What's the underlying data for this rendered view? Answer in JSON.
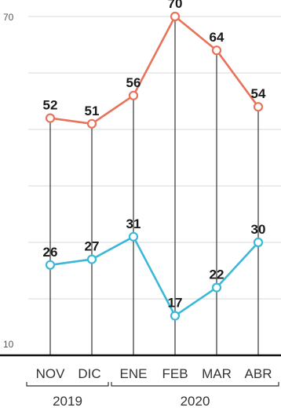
{
  "chart_data": {
    "type": "line",
    "categories": [
      "NOV",
      "DIC",
      "ENE",
      "FEB",
      "MAR",
      "ABR"
    ],
    "year_groups": [
      {
        "label": "2019",
        "categories": [
          "NOV",
          "DIC"
        ]
      },
      {
        "label": "2020",
        "categories": [
          "ENE",
          "FEB",
          "MAR",
          "ABR"
        ]
      }
    ],
    "series": [
      {
        "values": [
          52,
          51,
          56,
          70,
          64,
          54
        ],
        "color": "#e8735a"
      },
      {
        "values": [
          26,
          27,
          31,
          17,
          22,
          30
        ],
        "color": "#3bb8d8"
      }
    ],
    "ylim": [
      10,
      70
    ],
    "yticks": [
      {
        "value": 70,
        "label": "70"
      },
      {
        "value": 10,
        "label": "10"
      }
    ],
    "grid": true,
    "colors": {
      "grid": "#d8d8d8",
      "drop_lines": "#333333",
      "baseline": "#111111"
    }
  }
}
